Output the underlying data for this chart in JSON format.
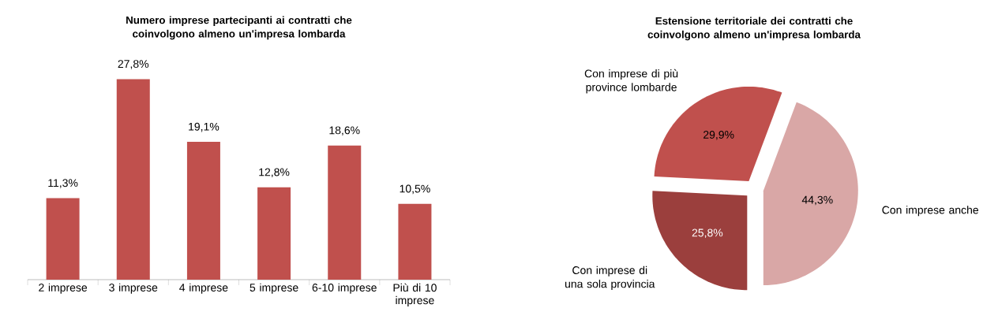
{
  "chart_data": [
    {
      "type": "bar",
      "title": "Numero imprese partecipanti ai contratti che coinvolgono almeno un'impresa lombarda",
      "categories": [
        "2 imprese",
        "3 imprese",
        "4 imprese",
        "5 imprese",
        "6-10 imprese",
        "Più di 10 imprese"
      ],
      "values": [
        11.3,
        27.8,
        19.1,
        12.8,
        18.6,
        10.5
      ],
      "value_labels": [
        "11,3%",
        "27,8%",
        "19,1%",
        "12,8%",
        "18,6%",
        "10,5%"
      ],
      "color": "#c0504d"
    },
    {
      "type": "pie",
      "title": "Estensione territoriale dei contratti che coinvolgono almeno un'impresa lombarda",
      "categories": [
        "Con imprese anche",
        "Con imprese di una sola provincia",
        "Con imprese di più province lombarde"
      ],
      "values": [
        44.3,
        25.8,
        29.9
      ],
      "value_labels": [
        "44,3%",
        "25,8%",
        "29,9%"
      ],
      "colors": [
        "#d9a7a6",
        "#9b3f3d",
        "#c0504d"
      ]
    }
  ]
}
